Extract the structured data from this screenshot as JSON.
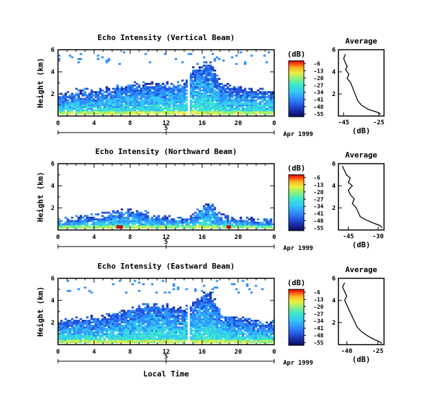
{
  "chart_data": [
    {
      "type": "heatmap",
      "title": "Echo Intensity (Vertical Beam)",
      "ylabel": "Height (km)",
      "x_ticks": [
        "0",
        "4",
        "8",
        "12",
        "16",
        "20",
        "0"
      ],
      "y_ticks": [
        "6",
        "4",
        "2"
      ],
      "date_tick": "5",
      "date_label": "Apr 1999",
      "xlim": [
        0,
        24
      ],
      "ylim": [
        0,
        6
      ],
      "colorbar": {
        "unit": "(dB)",
        "ticks": [
          "-6",
          "-13",
          "-20",
          "-27",
          "-34",
          "-41",
          "-48",
          "-55"
        ]
      },
      "echo": {
        "base_km": 1.8,
        "top_km": 2.6,
        "profile": [
          [
            0,
            1.8
          ],
          [
            2,
            2.2
          ],
          [
            4,
            2.3
          ],
          [
            6,
            2.5
          ],
          [
            8,
            2.8
          ],
          [
            10,
            2.9
          ],
          [
            12,
            2.9
          ],
          [
            14,
            3.0
          ],
          [
            15,
            4.2
          ],
          [
            16,
            4.6
          ],
          [
            17,
            4.8
          ],
          [
            18,
            2.9
          ],
          [
            20,
            2.6
          ],
          [
            22,
            2.3
          ],
          [
            24,
            2.2
          ]
        ]
      },
      "average_profile": {
        "title": "Average",
        "xlabel": "(dB)",
        "x_ticks": [
          "-45",
          "-25"
        ],
        "y_ticks": [
          "6",
          "4",
          "2"
        ],
        "xlim": [
          -48,
          -22
        ],
        "ylim": [
          0,
          6
        ],
        "points": [
          [
            -44,
            5.6
          ],
          [
            -45,
            5.2
          ],
          [
            -44,
            4.8
          ],
          [
            -43,
            4.5
          ],
          [
            -44,
            4.2
          ],
          [
            -42,
            3.8
          ],
          [
            -43,
            3.4
          ],
          [
            -41,
            3.0
          ],
          [
            -40,
            2.6
          ],
          [
            -39,
            2.2
          ],
          [
            -38,
            1.8
          ],
          [
            -37,
            1.4
          ],
          [
            -35,
            1.0
          ],
          [
            -31,
            0.6
          ],
          [
            -25,
            0.3
          ],
          [
            -24,
            0.15
          ]
        ]
      }
    },
    {
      "type": "heatmap",
      "title": "Echo Intensity (Northward Beam)",
      "ylabel": "Height (km)",
      "x_ticks": [
        "0",
        "4",
        "8",
        "12",
        "16",
        "20",
        "0"
      ],
      "y_ticks": [
        "6",
        "4",
        "2"
      ],
      "date_tick": "5",
      "date_label": "Apr 1999",
      "xlim": [
        0,
        24
      ],
      "ylim": [
        0,
        6
      ],
      "colorbar": {
        "unit": "(dB)",
        "ticks": [
          "-6",
          "-13",
          "-20",
          "-27",
          "-34",
          "-41",
          "-48",
          "-55"
        ]
      },
      "echo": {
        "base_km": 0.6,
        "top_km": 1.2,
        "profile": [
          [
            0,
            0.9
          ],
          [
            2,
            1.0
          ],
          [
            4,
            1.2
          ],
          [
            6,
            1.6
          ],
          [
            8,
            1.8
          ],
          [
            10,
            1.4
          ],
          [
            12,
            1.2
          ],
          [
            14,
            1.0
          ],
          [
            15,
            1.3
          ],
          [
            16,
            2.2
          ],
          [
            17,
            2.3
          ],
          [
            18,
            1.3
          ],
          [
            20,
            1.0
          ],
          [
            22,
            0.9
          ],
          [
            24,
            0.9
          ]
        ]
      },
      "average_profile": {
        "title": "Average",
        "xlabel": "(dB)",
        "x_ticks": [
          "-45",
          "-30"
        ],
        "y_ticks": [
          "6",
          "4",
          "2"
        ],
        "xlim": [
          -50,
          -27
        ],
        "ylim": [
          0,
          6
        ],
        "points": [
          [
            -48,
            5.8
          ],
          [
            -47,
            5.4
          ],
          [
            -46,
            5.0
          ],
          [
            -44,
            4.7
          ],
          [
            -45,
            4.3
          ],
          [
            -43,
            4.0
          ],
          [
            -45,
            3.6
          ],
          [
            -44,
            3.2
          ],
          [
            -42,
            2.8
          ],
          [
            -43,
            2.4
          ],
          [
            -41,
            2.0
          ],
          [
            -40,
            1.6
          ],
          [
            -39,
            1.2
          ],
          [
            -36,
            0.9
          ],
          [
            -32,
            0.6
          ],
          [
            -29,
            0.4
          ],
          [
            -28,
            0.2
          ]
        ]
      }
    },
    {
      "type": "heatmap",
      "title": "Echo Intensity (Eastward Beam)",
      "ylabel": "Height (km)",
      "x_ticks": [
        "0",
        "4",
        "8",
        "12",
        "16",
        "20",
        "0"
      ],
      "y_ticks": [
        "6",
        "4",
        "2"
      ],
      "date_tick": "5",
      "date_label": "Apr 1999",
      "xlabel": "Local Time",
      "xlim": [
        0,
        24
      ],
      "ylim": [
        0,
        6
      ],
      "colorbar": {
        "unit": "(dB)",
        "ticks": [
          "-6",
          "-13",
          "-20",
          "-27",
          "-34",
          "-41",
          "-48",
          "-55"
        ]
      },
      "echo": {
        "base_km": 1.8,
        "top_km": 2.8,
        "profile": [
          [
            0,
            2.0
          ],
          [
            2,
            2.3
          ],
          [
            4,
            2.4
          ],
          [
            6,
            2.7
          ],
          [
            8,
            3.3
          ],
          [
            10,
            3.6
          ],
          [
            12,
            3.5
          ],
          [
            14,
            3.2
          ],
          [
            15,
            3.8
          ],
          [
            16,
            4.5
          ],
          [
            17,
            4.6
          ],
          [
            18,
            2.9
          ],
          [
            20,
            2.4
          ],
          [
            22,
            2.1
          ],
          [
            24,
            2.0
          ]
        ]
      },
      "average_profile": {
        "title": "Average",
        "xlabel": "(dB)",
        "x_ticks": [
          "-40",
          "-25"
        ],
        "y_ticks": [
          "6",
          "4",
          "2"
        ],
        "xlim": [
          -44,
          -22
        ],
        "ylim": [
          0,
          6
        ],
        "points": [
          [
            -41,
            5.6
          ],
          [
            -42,
            5.2
          ],
          [
            -41,
            4.8
          ],
          [
            -40,
            4.4
          ],
          [
            -41,
            4.0
          ],
          [
            -40,
            3.6
          ],
          [
            -39,
            3.2
          ],
          [
            -38,
            2.8
          ],
          [
            -37,
            2.4
          ],
          [
            -36,
            2.0
          ],
          [
            -35,
            1.6
          ],
          [
            -33,
            1.2
          ],
          [
            -30,
            0.8
          ],
          [
            -27,
            0.5
          ],
          [
            -24,
            0.25
          ],
          [
            -23,
            0.1
          ]
        ]
      }
    }
  ],
  "palette": [
    "#0a0a5a",
    "#1a2aa0",
    "#2255dd",
    "#2f8fff",
    "#35c8f5",
    "#3ee8c8",
    "#8ff080",
    "#e8f040",
    "#ffb020",
    "#ff4010",
    "#cc0000"
  ]
}
